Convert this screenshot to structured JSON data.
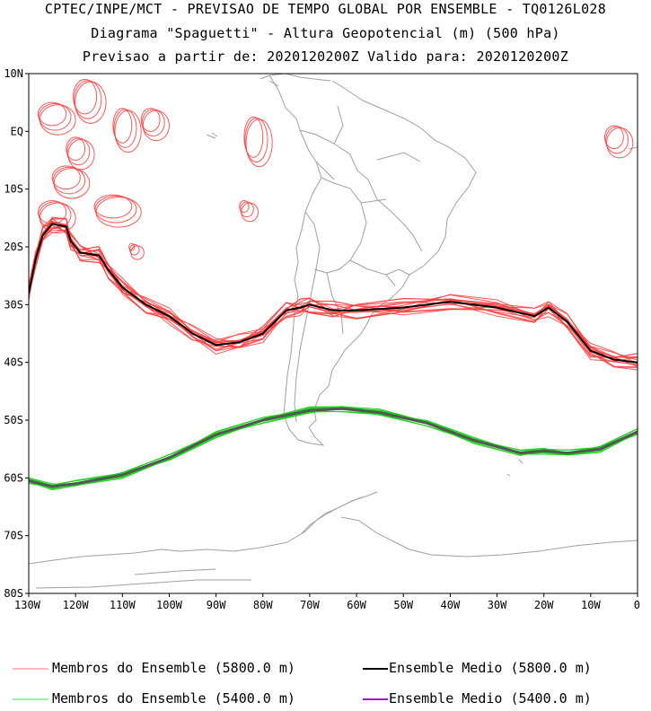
{
  "titles": {
    "line1": "CPTEC/INPE/MCT - PREVISAO DE TEMPO GLOBAL POR ENSEMBLE - TQ0126L028",
    "line2": "Diagrama \"Spaguetti\" - Altura Geopotencial (m) (500 hPa)",
    "line3": "Previsao a partir de: 2020120200Z  Valido para: 2020120200Z"
  },
  "map": {
    "lon_range": [
      -130,
      0
    ],
    "lat_range": [
      -80,
      10
    ],
    "lat_ticks": [
      "10N",
      "EQ",
      "10S",
      "20S",
      "30S",
      "40S",
      "50S",
      "60S",
      "70S",
      "80S"
    ],
    "lon_ticks": [
      "130W",
      "120W",
      "110W",
      "100W",
      "90W",
      "80W",
      "70W",
      "60W",
      "50W",
      "40W",
      "30W",
      "20W",
      "10W",
      "0"
    ],
    "colors": {
      "member_5800": "#ff3b3b",
      "mean_5800": "#000000",
      "member_5400": "#1fd41f",
      "mean_5400": "#9c1cc4",
      "coast": "#a0a0a0"
    }
  },
  "contours": {
    "mean_5800": [
      [
        -130,
        -28
      ],
      [
        -128.5,
        -22
      ],
      [
        -127,
        -18
      ],
      [
        -125,
        -16
      ],
      [
        -122,
        -16.5
      ],
      [
        -121,
        -19
      ],
      [
        -119,
        -21
      ],
      [
        -115,
        -21.5
      ],
      [
        -113,
        -24
      ],
      [
        -110,
        -27
      ],
      [
        -105,
        -30
      ],
      [
        -100,
        -32
      ],
      [
        -95,
        -35
      ],
      [
        -90,
        -37
      ],
      [
        -85,
        -36.5
      ],
      [
        -80,
        -35
      ],
      [
        -75,
        -31
      ],
      [
        -72,
        -30.5
      ],
      [
        -70,
        -30
      ],
      [
        -65,
        -31
      ],
      [
        -60,
        -31
      ],
      [
        -50,
        -30.5
      ],
      [
        -40,
        -29.5
      ],
      [
        -30,
        -30.5
      ],
      [
        -22,
        -32
      ],
      [
        -19,
        -30.5
      ],
      [
        -15,
        -33
      ],
      [
        -10,
        -38
      ],
      [
        -5,
        -39.5
      ],
      [
        0,
        -40
      ]
    ],
    "mean_5400": [
      [
        -130,
        -60.5
      ],
      [
        -125,
        -61.5
      ],
      [
        -120,
        -61
      ],
      [
        -110,
        -59.5
      ],
      [
        -100,
        -56.5
      ],
      [
        -90,
        -52.5
      ],
      [
        -80,
        -50
      ],
      [
        -70,
        -48.3
      ],
      [
        -63,
        -48
      ],
      [
        -55,
        -48.7
      ],
      [
        -45,
        -50.5
      ],
      [
        -35,
        -53.5
      ],
      [
        -25,
        -55.7
      ],
      [
        -20,
        -55.3
      ],
      [
        -15,
        -55.7
      ],
      [
        -8,
        -55
      ],
      [
        0,
        -52
      ]
    ]
  },
  "legend": {
    "members_5800": "Membros do Ensemble (5800.0 m)",
    "mean_5800": "Ensemble Medio (5800.0 m)",
    "members_5400": "Membros do Ensemble (5400.0 m)",
    "mean_5400": "Ensemble Medio (5400.0 m)"
  }
}
